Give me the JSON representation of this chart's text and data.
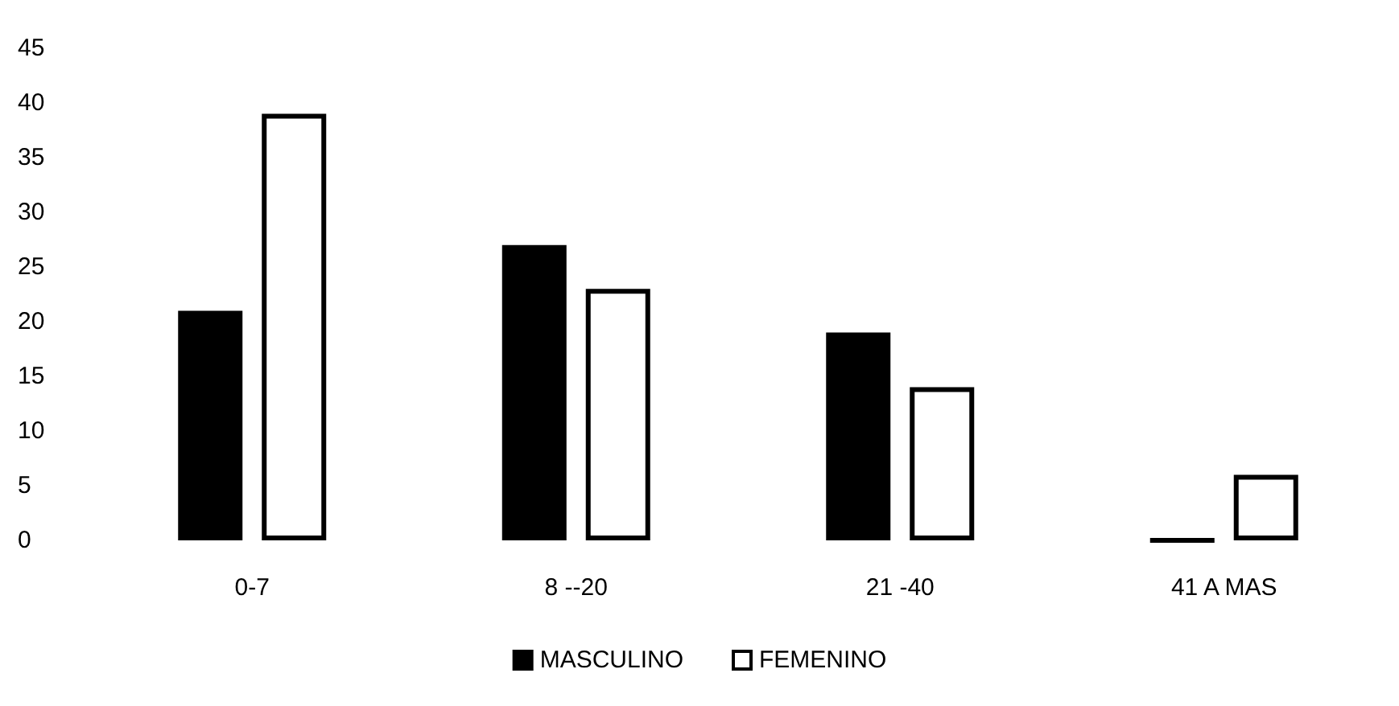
{
  "chart_data": {
    "type": "bar",
    "categories": [
      "0-7",
      "8 --20",
      "21 -40",
      "41 A MAS"
    ],
    "series": [
      {
        "name": "MASCULINO",
        "color": "#000000",
        "values": [
          21,
          27,
          19,
          0
        ]
      },
      {
        "name": "FEMENINO",
        "color": "#ffffff",
        "values": [
          39,
          23,
          14,
          6
        ]
      }
    ],
    "ylim": [
      0,
      45
    ],
    "yticks": [
      0,
      5,
      10,
      15,
      20,
      25,
      30,
      35,
      40,
      45
    ],
    "grid": false,
    "legend": "bottom"
  }
}
